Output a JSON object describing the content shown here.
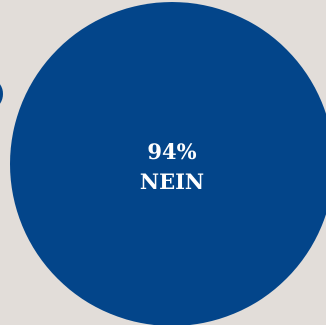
{
  "chart_data": {
    "type": "pie",
    "title": "",
    "slices": [
      {
        "value": 94,
        "value_label": "94%",
        "category": "NEIN",
        "color": "#03458a"
      },
      {
        "value": 6,
        "value_label": "",
        "category": "",
        "color": "#03458a"
      }
    ],
    "background_color": "#e2ddd9"
  }
}
